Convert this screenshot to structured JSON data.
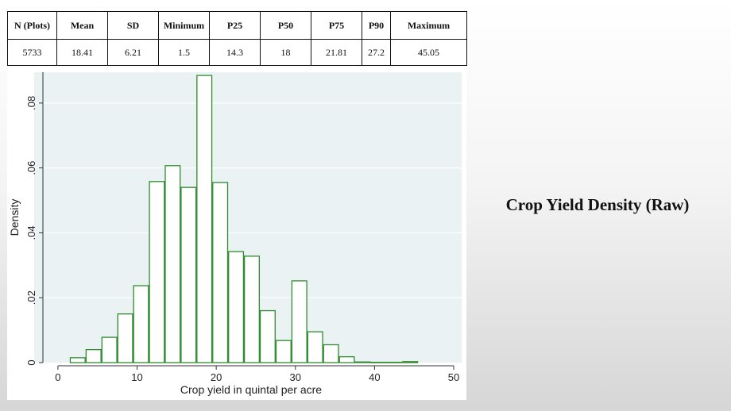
{
  "slide": {
    "title": "Crop Yield Density (Raw)"
  },
  "stats_table": {
    "headers": [
      "N (Plots)",
      "Mean",
      "SD",
      "Minimum",
      "P25",
      "P50",
      "P75",
      "P90",
      "Maximum"
    ],
    "values": [
      "5733",
      "18.41",
      "6.21",
      "1.5",
      "14.3",
      "18",
      "21.81",
      "27.2",
      "45.05"
    ]
  },
  "chart_data": {
    "type": "bar",
    "title": "",
    "xlabel": "Crop yield in quintal per acre",
    "ylabel": "Density",
    "xlim": [
      -3,
      51
    ],
    "ylim": [
      0,
      0.0895
    ],
    "x_ticks": [
      0,
      10,
      20,
      30,
      40,
      50
    ],
    "x_tick_labels": [
      "0",
      "10",
      "20",
      "30",
      "40",
      "50"
    ],
    "y_ticks": [
      0,
      0.02,
      0.04,
      0.06,
      0.08
    ],
    "y_tick_labels": [
      "0",
      ".02",
      ".04",
      ".06",
      ".08"
    ],
    "grid": true,
    "legend": "none",
    "bar_color": "#2e8b2e",
    "bin_width": 2,
    "bin_starts": [
      1.5,
      3.5,
      5.5,
      7.5,
      9.5,
      11.5,
      13.5,
      15.5,
      17.5,
      19.5,
      21.5,
      23.5,
      25.5,
      27.5,
      29.5,
      31.5,
      33.5,
      35.5,
      37.5,
      39.5,
      41.5,
      43.5
    ],
    "values": [
      0.0015,
      0.004,
      0.0078,
      0.015,
      0.0237,
      0.0558,
      0.0607,
      0.054,
      0.0885,
      0.0555,
      0.0342,
      0.0328,
      0.016,
      0.0068,
      0.0252,
      0.0095,
      0.0055,
      0.0018,
      0.0002,
      0.0001,
      0.0001,
      0.0003
    ]
  }
}
